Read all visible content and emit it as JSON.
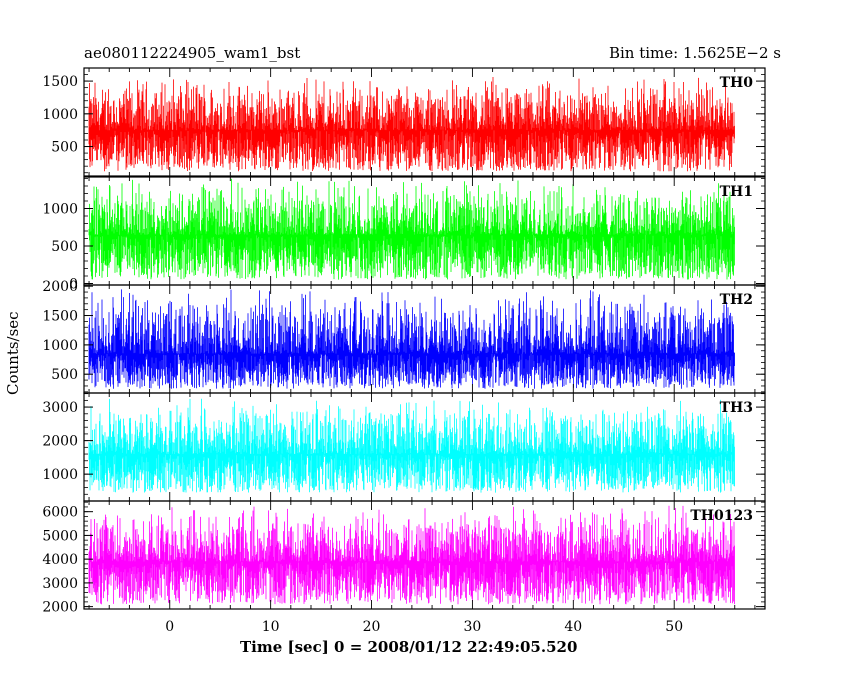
{
  "header": {
    "title": "ae080112224905_wam1_bst",
    "bin_time": "Bin time: 1.5625E−2 s"
  },
  "axes": {
    "xlabel": "Time [sec] 0 = 2008/01/12 22:49:05.520",
    "ylabel": "Counts/sec"
  },
  "chart_data": {
    "type": "line",
    "xlim": [
      -8.5,
      59
    ],
    "x_data_range": [
      -8,
      56
    ],
    "x_ticks": [
      0,
      10,
      20,
      30,
      40,
      50
    ],
    "x_tick_labels": [
      "0",
      "10",
      "20",
      "30",
      "40",
      "50"
    ],
    "panels": [
      {
        "name": "TH0",
        "color": "#ff0000",
        "ylim": [
          50,
          1700
        ],
        "ticks": [
          500,
          1000,
          1500
        ],
        "tick_labels": [
          "500",
          "1000",
          "1500"
        ],
        "baseline": 750,
        "spread": [
          120,
          1600
        ]
      },
      {
        "name": "TH1",
        "color": "#00ff00",
        "ylim": [
          -20,
          1420
        ],
        "ticks": [
          0,
          500,
          1000
        ],
        "tick_labels": [
          "0",
          "500",
          "1000"
        ],
        "baseline": 650,
        "spread": [
          50,
          1400
        ]
      },
      {
        "name": "TH2",
        "color": "#0000ff",
        "ylim": [
          180,
          2020
        ],
        "ticks": [
          500,
          1000,
          1500,
          2000
        ],
        "tick_labels": [
          "500",
          "1000",
          "1500",
          "2000"
        ],
        "baseline": 850,
        "spread": [
          250,
          2000
        ]
      },
      {
        "name": "TH3",
        "color": "#00ffff",
        "ylim": [
          200,
          3420
        ],
        "ticks": [
          1000,
          2000,
          3000
        ],
        "tick_labels": [
          "1000",
          "2000",
          "3000"
        ],
        "baseline": 1600,
        "spread": [
          450,
          3300
        ]
      },
      {
        "name": "TH0123",
        "color": "#ff00ff",
        "ylim": [
          1900,
          6450
        ],
        "ticks": [
          2000,
          3000,
          4000,
          5000,
          6000
        ],
        "tick_labels": [
          "2000",
          "3000",
          "4000",
          "5000",
          "6000"
        ],
        "baseline": 3900,
        "spread": [
          2100,
          6300
        ]
      }
    ]
  }
}
